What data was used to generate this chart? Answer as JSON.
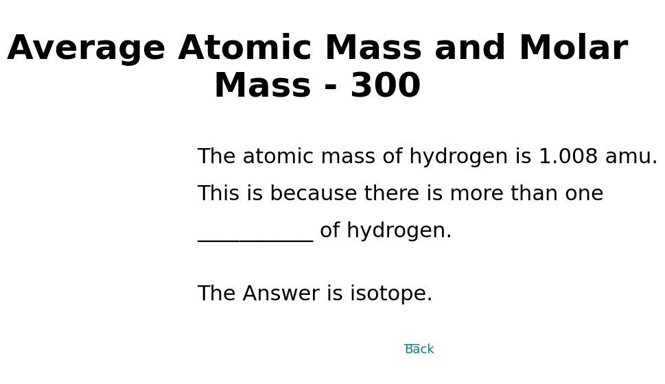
{
  "title_line1": "Average Atomic Mass and Molar",
  "title_line2": "Mass - 300",
  "body_line1": "The atomic mass of hydrogen is 1.008 amu.",
  "body_line2": "This is because there is more than one",
  "body_line3": "___________ of hydrogen.",
  "answer_text": "The Answer is isotope.",
  "back_text": "Back",
  "background_color": "#ffffff",
  "title_color": "#000000",
  "body_color": "#000000",
  "answer_color": "#000000",
  "back_color": "#008080",
  "title_fontsize": 36,
  "body_fontsize": 22,
  "answer_fontsize": 22,
  "back_fontsize": 13
}
